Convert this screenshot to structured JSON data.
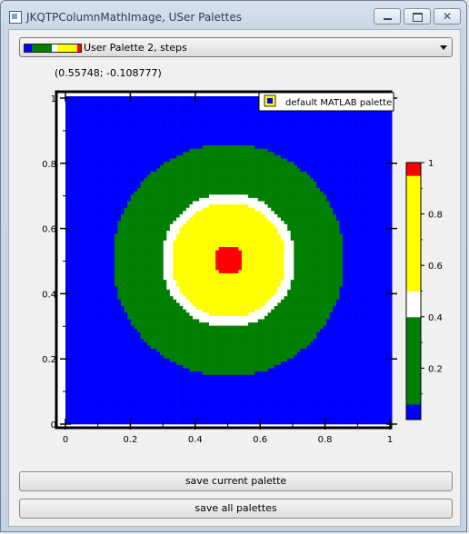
{
  "window": {
    "title": "JKQTPColumnMathImage, USer Palettes"
  },
  "palette_combo": {
    "selected": "User Palette 2, steps"
  },
  "coordinate_readout": "(0.55748; -0.108777)",
  "plot": {
    "legend_label": "default MATLAB palette",
    "x_ticks": [
      "0",
      "0.2",
      "0.4",
      "0.6",
      "0.8",
      "1"
    ],
    "y_ticks": [
      "0",
      "0.2",
      "0.4",
      "0.6",
      "0.8",
      "1"
    ],
    "colorbar_ticks": [
      "0.2",
      "0.4",
      "0.6",
      "0.8",
      "1"
    ],
    "colors": {
      "blue": "#0000ff",
      "green": "#007f00",
      "white": "#ffffff",
      "yellow": "#ffff00",
      "red": "#ff0000"
    }
  },
  "buttons": {
    "save_current": "save current palette",
    "save_all": "save all palettes"
  }
}
